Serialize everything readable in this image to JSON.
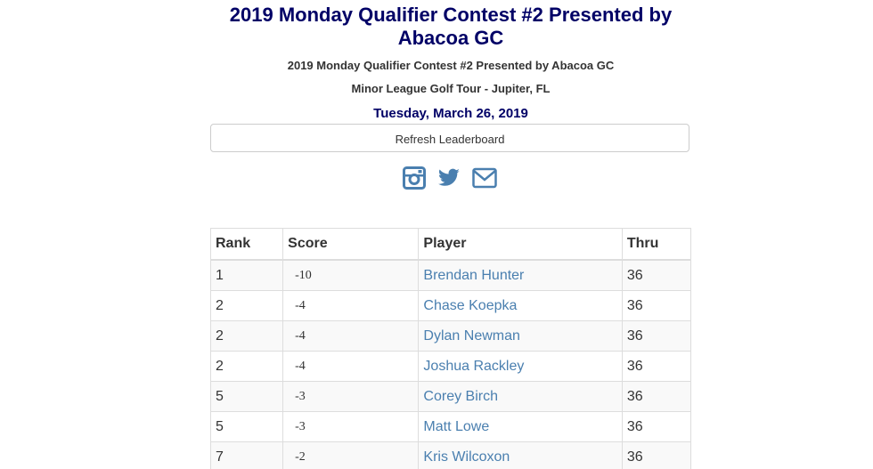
{
  "header": {
    "title": "2019 Monday Qualifier Contest #2 Presented by Abacoa GC",
    "subtitle": "2019 Monday Qualifier Contest #2 Presented by Abacoa GC",
    "tour": "Minor League Golf Tour - Jupiter, FL",
    "date": "Tuesday, March 26, 2019"
  },
  "refresh_label": "Refresh Leaderboard",
  "social": {
    "icons": [
      "instagram-icon",
      "twitter-icon",
      "envelope-icon"
    ],
    "color": "#4a7faf"
  },
  "colors": {
    "title": "#000066",
    "score": "#cc0000",
    "link": "#4a7faf"
  },
  "table": {
    "headers": {
      "rank": "Rank",
      "score": "Score",
      "player": "Player",
      "thru": "Thru"
    },
    "rows": [
      {
        "rank": "1",
        "score": "-10",
        "player": "Brendan Hunter",
        "thru": "36"
      },
      {
        "rank": "2",
        "score": "-4",
        "player": "Chase Koepka",
        "thru": "36"
      },
      {
        "rank": "2",
        "score": "-4",
        "player": "Dylan Newman",
        "thru": "36"
      },
      {
        "rank": "2",
        "score": "-4",
        "player": "Joshua Rackley",
        "thru": "36"
      },
      {
        "rank": "5",
        "score": "-3",
        "player": "Corey Birch",
        "thru": "36"
      },
      {
        "rank": "5",
        "score": "-3",
        "player": "Matt Lowe",
        "thru": "36"
      },
      {
        "rank": "7",
        "score": "-2",
        "player": "Kris Wilcoxon",
        "thru": "36"
      }
    ]
  }
}
